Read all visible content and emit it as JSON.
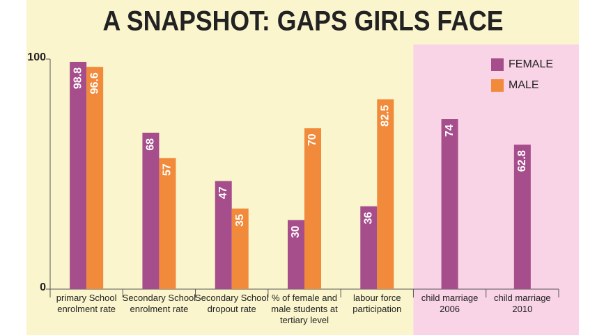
{
  "chart_data": {
    "type": "bar",
    "title": "A SNAPSHOT: GAPS GIRLS FACE",
    "categories": [
      "primary School\nenrolment rate",
      "Secondary School\nenrolment rate",
      "Secondary School\ndropout rate",
      "% of female and\nmale students at\ntertiary level",
      "labour force\nparticipation",
      "child marriage\n2006",
      "child marriage\n2010"
    ],
    "series": [
      {
        "name": "FEMALE",
        "color": "#a64d8c",
        "values": [
          98.8,
          68,
          47,
          30,
          36,
          74,
          62.8
        ]
      },
      {
        "name": "MALE",
        "color": "#f18a3a",
        "values": [
          96.6,
          57,
          35,
          70,
          82.5,
          null,
          null
        ]
      }
    ],
    "ylim": [
      0,
      100
    ],
    "yticks": [
      0,
      100
    ],
    "legend": "upper right"
  }
}
